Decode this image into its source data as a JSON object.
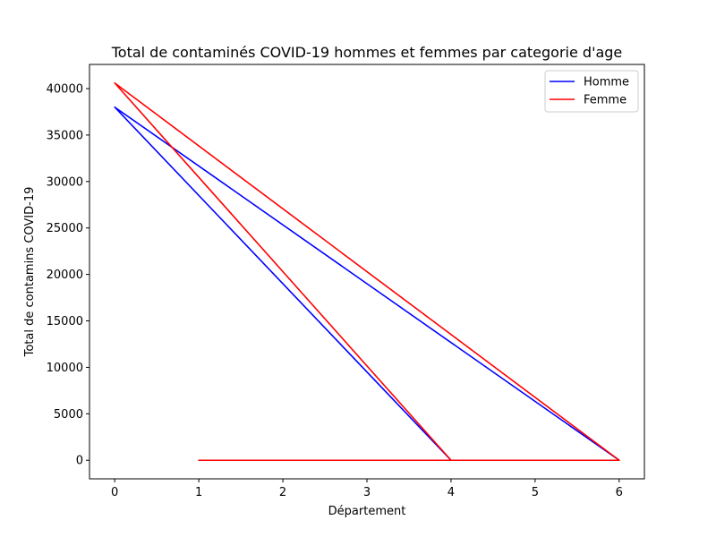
{
  "chart_data": {
    "type": "line",
    "title": "Total de contaminés COVID-19 hommes et femmes par categorie d'age",
    "xlabel": "Département",
    "ylabel": "Total de contamins COVID-19",
    "xlim": [
      -0.3,
      6.3
    ],
    "ylim": [
      -2000,
      42600
    ],
    "xticks": [
      0,
      1,
      2,
      3,
      4,
      5,
      6
    ],
    "yticks": [
      0,
      5000,
      10000,
      15000,
      20000,
      25000,
      30000,
      35000,
      40000
    ],
    "grid": false,
    "legend_position": "top-right",
    "series": [
      {
        "name": "Homme",
        "color": "#0000ff",
        "x": [
          1,
          5,
          4,
          0,
          6,
          1
        ],
        "y": [
          0,
          0,
          0,
          38000,
          0,
          0
        ]
      },
      {
        "name": "Femme",
        "color": "#ff0000",
        "x": [
          1,
          4,
          0,
          6,
          1
        ],
        "y": [
          0,
          0,
          40600,
          0,
          0
        ]
      }
    ]
  }
}
